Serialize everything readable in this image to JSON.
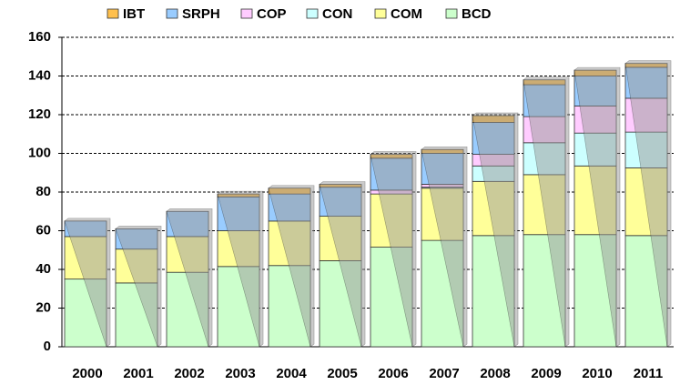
{
  "chart_data": {
    "type": "stacked_bar",
    "categories": [
      "2000",
      "2001",
      "2002",
      "2003",
      "2004",
      "2005",
      "2006",
      "2007",
      "2008",
      "2009",
      "2010",
      "2011"
    ],
    "series": [
      {
        "name": "BCD",
        "color": "#ccffcc",
        "values": [
          35,
          33,
          38.5,
          41.5,
          42,
          44.5,
          51.5,
          55,
          57.5,
          58,
          58,
          57.5
        ]
      },
      {
        "name": "COM",
        "color": "#ffff99",
        "values": [
          22,
          17.5,
          18.5,
          18.5,
          23,
          23,
          27.5,
          27,
          28,
          31,
          35.5,
          35
        ]
      },
      {
        "name": "CON",
        "color": "#ccffff",
        "values": [
          0,
          0,
          0,
          0,
          0,
          0,
          0,
          0.5,
          8,
          16.5,
          17,
          18.5
        ]
      },
      {
        "name": "COP",
        "color": "#ffccff",
        "values": [
          0,
          0,
          0,
          0,
          0,
          0,
          2,
          1.5,
          6,
          13.5,
          14,
          17.5
        ]
      },
      {
        "name": "SRPH",
        "color": "#99ccff",
        "values": [
          8,
          10.5,
          13,
          17.5,
          14,
          15,
          16.5,
          16,
          16.5,
          16.5,
          15.5,
          16
        ]
      },
      {
        "name": "IBT",
        "color": "#ffc04d",
        "values": [
          0,
          0,
          0,
          1.5,
          3,
          1.5,
          2,
          2,
          3.5,
          2.5,
          3,
          2
        ]
      }
    ],
    "ylim": [
      0,
      160
    ],
    "yticks": [
      0,
      20,
      40,
      60,
      80,
      100,
      120,
      140,
      160
    ],
    "grid": true
  }
}
